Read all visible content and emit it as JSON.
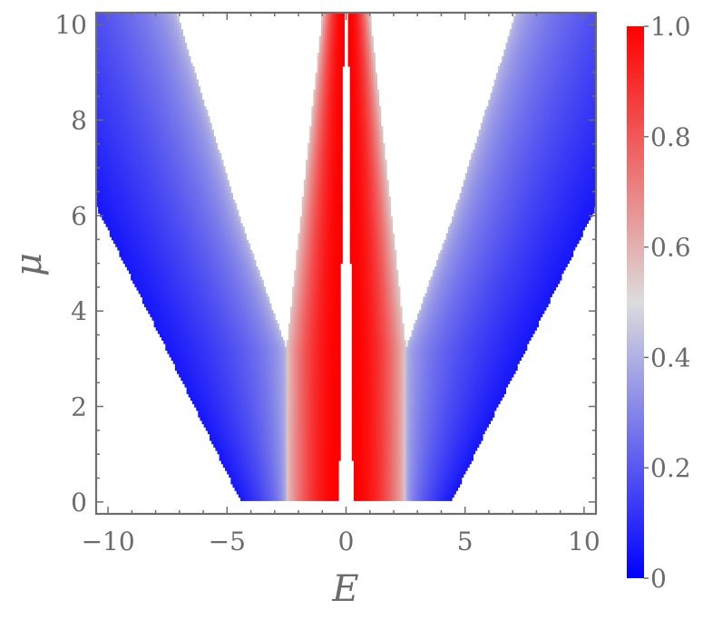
{
  "chart_data": {
    "type": "heatmap",
    "xlabel": "E",
    "ylabel": "μ",
    "xlim": [
      -10.5,
      10.5
    ],
    "ylim": [
      -0.25,
      10.25
    ],
    "x_ticks": [
      -10,
      -5,
      0,
      5,
      10
    ],
    "x_tick_labels": [
      "−10",
      "−5",
      "0",
      "5",
      "10"
    ],
    "y_ticks": [
      0,
      2,
      4,
      6,
      8,
      10
    ],
    "y_tick_labels": [
      "0",
      "2",
      "4",
      "6",
      "8",
      "10"
    ],
    "colorbar": {
      "range": [
        0,
        1
      ],
      "ticks": [
        0,
        0.2,
        0.4,
        0.6,
        0.8,
        1.0
      ],
      "tick_labels": [
        "0",
        "0.2",
        "0.4",
        "0.6",
        "0.8",
        "1.0"
      ],
      "colors": [
        "#0000ff",
        "#dcdcdc",
        "#ff0000"
      ]
    },
    "regions": [
      {
        "description": "outer band (value ~0 to 0.5), symmetric in E",
        "outer_edge": [
          [
            4.4,
            0
          ],
          [
            10.5,
            6.2
          ]
        ],
        "inner_edge": [
          [
            2.5,
            3.2
          ],
          [
            4.5,
            6
          ],
          [
            7.1,
            10.2
          ]
        ],
        "value_range": [
          0.05,
          0.45
        ]
      },
      {
        "description": "inner band (value ~0.5 to 1), symmetric in E",
        "outer_edge": [
          [
            2.5,
            0
          ],
          [
            2.5,
            3.2
          ],
          [
            1.0,
            10.2
          ]
        ],
        "inner_edge": [
          [
            0.3,
            0
          ],
          [
            0.1,
            10.2
          ]
        ],
        "value_range": [
          0.55,
          1.0
        ]
      }
    ],
    "grid": false
  }
}
